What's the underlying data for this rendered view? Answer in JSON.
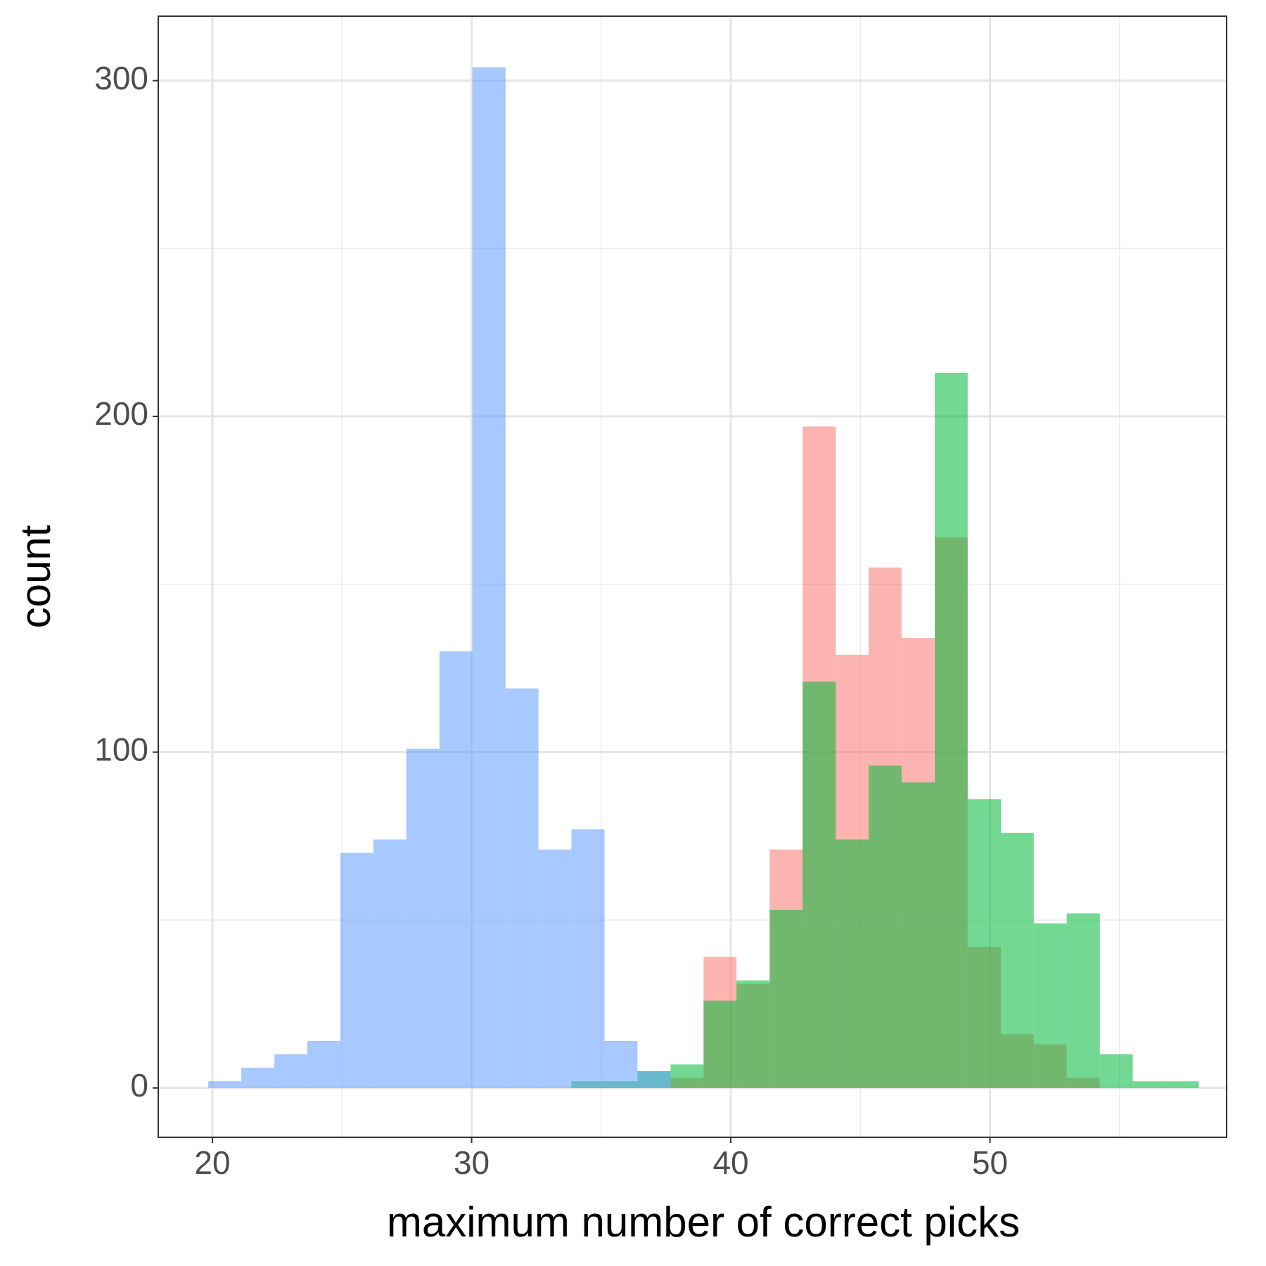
{
  "chart_data": {
    "type": "histogram",
    "x_label": "maximum number of correct picks",
    "y_label": "count",
    "bins": [
      19.84,
      21.11,
      22.39,
      23.66,
      24.94,
      26.21,
      27.48,
      28.76,
      30.03,
      31.31,
      32.58,
      33.85,
      35.13,
      36.4,
      37.68,
      38.95,
      40.22,
      41.5,
      42.77,
      44.05,
      45.32,
      46.59,
      47.87,
      49.14,
      50.42,
      51.69,
      52.96,
      54.24,
      55.51,
      56.79,
      58.06
    ],
    "series": [
      {
        "color": "#F8766D",
        "values": [
          0,
          0,
          0,
          0,
          0,
          0,
          0,
          0,
          0,
          0,
          0,
          0,
          0,
          0,
          3,
          39,
          31,
          71,
          197,
          129,
          155,
          134,
          164,
          42,
          16,
          13,
          3,
          0,
          0,
          0
        ]
      },
      {
        "color": "#00BA38",
        "values": [
          0,
          0,
          0,
          0,
          0,
          0,
          0,
          0,
          0,
          0,
          0,
          2,
          2,
          5,
          7,
          26,
          32,
          53,
          121,
          74,
          96,
          91,
          213,
          86,
          76,
          49,
          52,
          10,
          2,
          2
        ]
      },
      {
        "color": "#619CFF",
        "values": [
          2,
          6,
          10,
          14,
          70,
          74,
          101,
          130,
          304,
          119,
          71,
          77,
          14,
          5,
          0,
          0,
          0,
          0,
          0,
          0,
          0,
          0,
          0,
          0,
          0,
          0,
          0,
          0,
          0,
          0
        ]
      }
    ],
    "opacity": 0.55,
    "xlim": [
      17.91,
      59.13
    ],
    "ylim": [
      -14.7,
      319.2
    ],
    "xticks": [
      20,
      30,
      40,
      50
    ],
    "yticks": [
      0,
      100,
      200,
      300
    ],
    "grid": true
  }
}
